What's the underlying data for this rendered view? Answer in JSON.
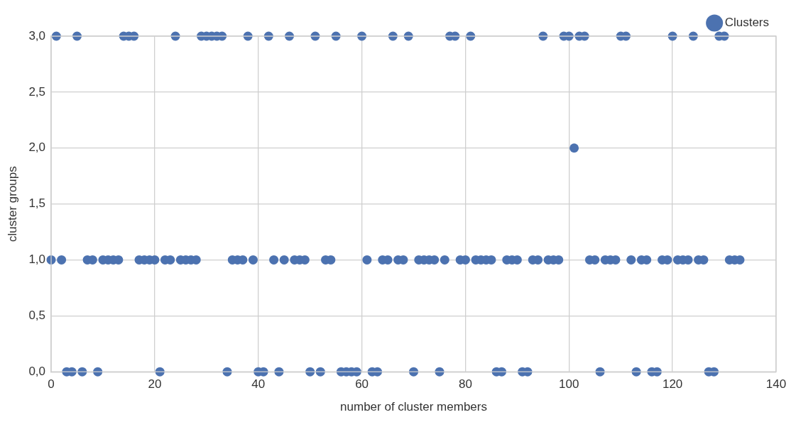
{
  "chart_data": {
    "type": "scatter",
    "xlabel": "number of cluster members",
    "ylabel": "cluster groups",
    "x": [
      0,
      1,
      2,
      3,
      4,
      5,
      6,
      7,
      8,
      9,
      10,
      11,
      12,
      13,
      14,
      15,
      16,
      17,
      18,
      19,
      20,
      21,
      22,
      23,
      24,
      25,
      26,
      27,
      28,
      29,
      30,
      31,
      32,
      33,
      34,
      35,
      36,
      37,
      38,
      39,
      40,
      41,
      42,
      43,
      44,
      45,
      46,
      47,
      48,
      49,
      50,
      51,
      52,
      53,
      54,
      55,
      56,
      57,
      58,
      59,
      60,
      61,
      62,
      63,
      64,
      65,
      66,
      67,
      68,
      69,
      70,
      71,
      72,
      73,
      74,
      75,
      76,
      77,
      78,
      79,
      80,
      81,
      82,
      83,
      84,
      85,
      86,
      87,
      88,
      89,
      90,
      91,
      92,
      93,
      94,
      95,
      96,
      97,
      98,
      99,
      100,
      101,
      102,
      103,
      104,
      105,
      106,
      107,
      108,
      109,
      110,
      111,
      112,
      113,
      114,
      115,
      116,
      117,
      118,
      119,
      120,
      121,
      122,
      123,
      124,
      125,
      126,
      127,
      128,
      129,
      130,
      131,
      132,
      133
    ],
    "series": [
      {
        "name": "Clusters",
        "color": "#4c72b0",
        "values": [
          1,
          3,
          1,
          0,
          0,
          3,
          0,
          1,
          1,
          0,
          1,
          1,
          1,
          1,
          3,
          3,
          3,
          1,
          1,
          1,
          1,
          0,
          1,
          1,
          3,
          1,
          1,
          1,
          1,
          3,
          3,
          3,
          3,
          3,
          0,
          1,
          1,
          1,
          3,
          1,
          0,
          0,
          3,
          1,
          0,
          1,
          3,
          1,
          1,
          1,
          0,
          3,
          0,
          1,
          1,
          3,
          0,
          0,
          0,
          0,
          3,
          1,
          0,
          0,
          1,
          1,
          3,
          1,
          1,
          3,
          0,
          1,
          1,
          1,
          1,
          0,
          1,
          3,
          3,
          1,
          1,
          3,
          1,
          1,
          1,
          1,
          0,
          0,
          1,
          1,
          1,
          0,
          0,
          1,
          1,
          3,
          1,
          1,
          1,
          3,
          3,
          2,
          3,
          3,
          1,
          1,
          0,
          1,
          1,
          1,
          3,
          3,
          1,
          0,
          1,
          1,
          0,
          0,
          1,
          1,
          3,
          1,
          1,
          1,
          3,
          1,
          1,
          0,
          0,
          3,
          3,
          1,
          1,
          1
        ]
      }
    ],
    "xlim": [
      0,
      140
    ],
    "xticks": [
      0,
      20,
      40,
      60,
      80,
      100,
      120,
      140
    ],
    "ylim": [
      0,
      3
    ],
    "yticks": [
      {
        "value": 0,
        "label": "0,0"
      },
      {
        "value": 0.5,
        "label": "0,5"
      },
      {
        "value": 1,
        "label": "1,0"
      },
      {
        "value": 1.5,
        "label": "1,5"
      },
      {
        "value": 2,
        "label": "2,0"
      },
      {
        "value": 2.5,
        "label": "2,5"
      },
      {
        "value": 3,
        "label": "3,0"
      }
    ],
    "grid": true,
    "legend": "top right",
    "marker": "circle"
  }
}
